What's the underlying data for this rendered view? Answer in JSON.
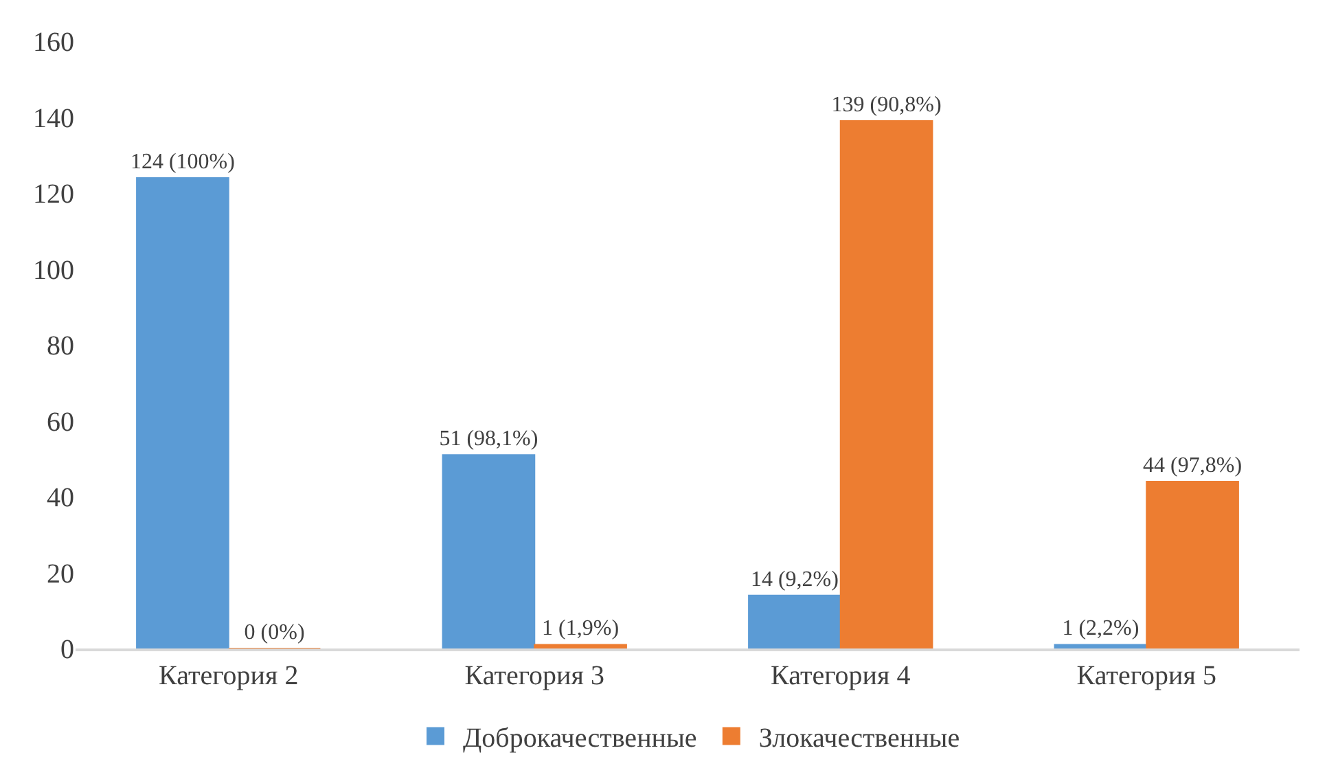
{
  "chart_data": {
    "type": "bar",
    "categories": [
      "Категория 2",
      "Категория 3",
      "Категория 4",
      "Категория 5"
    ],
    "series": [
      {
        "name": "Доброкачественные",
        "color": "#5b9bd5",
        "values": [
          124,
          51,
          14,
          1
        ],
        "value_labels": [
          "124 (100%)",
          "51 (98,1%)",
          "14 (9,2%)",
          "1 (2,2%)"
        ]
      },
      {
        "name": "Злокачественные",
        "color": "#ed7d31",
        "values": [
          0,
          1,
          139,
          44
        ],
        "value_labels": [
          "0 (0%)",
          "1 (1,9%)",
          "139 (90,8%)",
          "44 (97,8%)"
        ]
      }
    ],
    "ylim": [
      0,
      160
    ],
    "yticks": [
      0,
      20,
      40,
      60,
      80,
      100,
      120,
      140,
      160
    ],
    "grid": false,
    "legend": "bottom"
  }
}
